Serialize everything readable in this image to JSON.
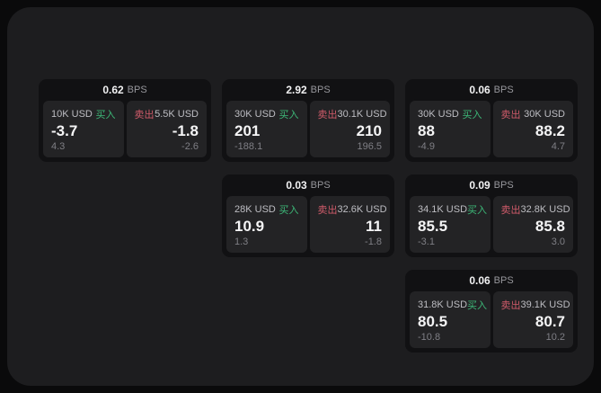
{
  "labels": {
    "bps_unit": "BPS",
    "buy": "买入",
    "sell": "卖出"
  },
  "colors": {
    "page_background": "#0a0a0b",
    "panel_background": "#1d1d1f",
    "card_background": "#111113",
    "tile_background": "#232325",
    "buy_green": "#3db878",
    "sell_red": "#cf5b6a",
    "price_white": "#f5f5f6",
    "muted_gray": "#7f7f85"
  },
  "cards": [
    {
      "bps": "0.62",
      "buy_amount": "10K USD",
      "buy_price": "-3.7",
      "buy_change": "4.3",
      "sell_amount": "5.5K USD",
      "sell_price": "-1.8",
      "sell_change": "-2.6"
    },
    {
      "bps": "2.92",
      "buy_amount": "30K USD",
      "buy_price": "201",
      "buy_change": "-188.1",
      "sell_amount": "30.1K USD",
      "sell_price": "210",
      "sell_change": "196.5"
    },
    {
      "bps": "0.06",
      "buy_amount": "30K USD",
      "buy_price": "88",
      "buy_change": "-4.9",
      "sell_amount": "30K USD",
      "sell_price": "88.2",
      "sell_change": "4.7"
    },
    {
      "bps": "0.03",
      "buy_amount": "28K USD",
      "buy_price": "10.9",
      "buy_change": "1.3",
      "sell_amount": "32.6K USD",
      "sell_price": "11",
      "sell_change": "-1.8"
    },
    {
      "bps": "0.09",
      "buy_amount": "34.1K USD",
      "buy_price": "85.5",
      "buy_change": "-3.1",
      "sell_amount": "32.8K USD",
      "sell_price": "85.8",
      "sell_change": "3.0"
    },
    {
      "bps": "0.06",
      "buy_amount": "31.8K USD",
      "buy_price": "80.5",
      "buy_change": "-10.8",
      "sell_amount": "39.1K USD",
      "sell_price": "80.7",
      "sell_change": "10.2"
    }
  ]
}
